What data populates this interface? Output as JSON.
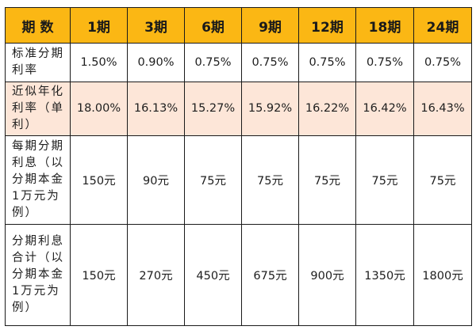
{
  "table": {
    "corner_label": "期数",
    "periods": [
      "1期",
      "3期",
      "6期",
      "9期",
      "12期",
      "18期",
      "24期"
    ],
    "rows": [
      {
        "label": "标准分期利率",
        "values": [
          "1.50%",
          "0.90%",
          "0.75%",
          "0.75%",
          "0.75%",
          "0.75%",
          "0.75%"
        ]
      },
      {
        "label": "近似年化利率（单利）",
        "values": [
          "18.00%",
          "16.13%",
          "15.27%",
          "15.92%",
          "16.22%",
          "16.42%",
          "16.43%"
        ]
      },
      {
        "label": "每期分期利息（以分期本金1万元为例）",
        "values": [
          "150元",
          "90元",
          "75元",
          "75元",
          "75元",
          "75元",
          "75元"
        ]
      },
      {
        "label": "分期利息合计（以分期本金1万元为例）",
        "values": [
          "150元",
          "270元",
          "450元",
          "675元",
          "900元",
          "1350元",
          "1800元"
        ]
      }
    ]
  },
  "colors": {
    "header_bg": "#fbb714",
    "shaded_row_bg": "#fde6d8",
    "border": "#1a1a1a"
  }
}
